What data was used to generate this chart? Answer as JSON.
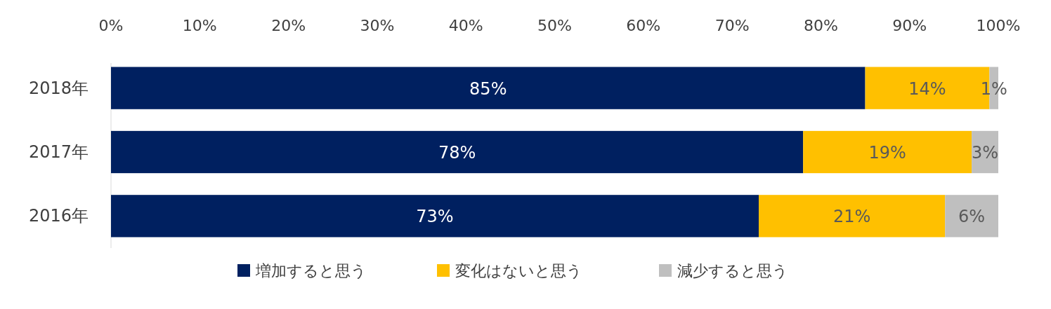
{
  "chart_data": {
    "type": "bar",
    "orientation": "horizontal",
    "stacked": true,
    "categories": [
      "2018年",
      "2017年",
      "2016年"
    ],
    "series": [
      {
        "name": "増加すると思う",
        "color": "#002060",
        "values": [
          85,
          78,
          73
        ],
        "value_labels": [
          "85%",
          "78%",
          "73%"
        ]
      },
      {
        "name": "変化はないと思う",
        "color": "#ffc000",
        "values": [
          14,
          19,
          21
        ],
        "value_labels": [
          "14%",
          "19%",
          "21%"
        ]
      },
      {
        "name": "減少すると思う",
        "color": "#bfbfbf",
        "values": [
          1,
          3,
          6
        ],
        "value_labels": [
          "1%",
          "3%",
          "6%"
        ]
      }
    ],
    "xlim": [
      0,
      100
    ],
    "xticks": [
      {
        "value": 0,
        "label": "0%"
      },
      {
        "value": 10,
        "label": "10%"
      },
      {
        "value": 20,
        "label": "20%"
      },
      {
        "value": 30,
        "label": "30%"
      },
      {
        "value": 40,
        "label": "40%"
      },
      {
        "value": 50,
        "label": "50%"
      },
      {
        "value": 60,
        "label": "60%"
      },
      {
        "value": 70,
        "label": "70%"
      },
      {
        "value": 80,
        "label": "80%"
      },
      {
        "value": 90,
        "label": "90%"
      },
      {
        "value": 100,
        "label": "100%"
      }
    ],
    "grid": false,
    "legend": "bottom"
  }
}
